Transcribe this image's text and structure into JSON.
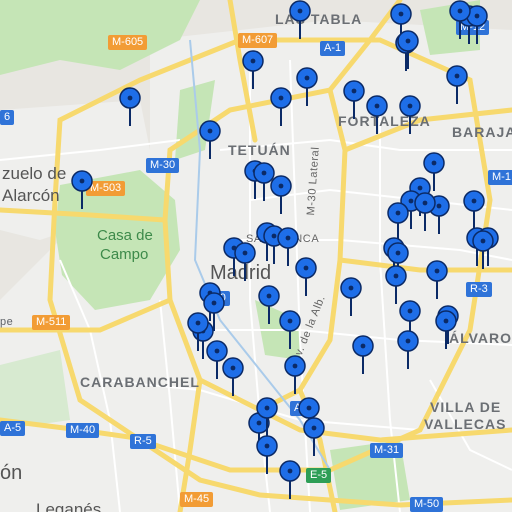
{
  "colors": {
    "background": "#e8e6e1",
    "park": "#c5e5b6",
    "urban": "#efefed",
    "road_major": "#f7d96e",
    "road_minor": "#ffffff",
    "pin_fill": "#1e6ee8",
    "pin_stroke": "#0b2a66",
    "shield_blue": "#2f73d8",
    "shield_orange": "#f29c35",
    "shield_green": "#2e9e56"
  },
  "labels": {
    "madrid": "Madrid",
    "tetuan": "TETUÁN",
    "salamanca": "SALAMANCA",
    "fortaleza": "FORTALEZA",
    "barajas": "BARAJA",
    "las_tablas": "LAS TABLA",
    "pozuelo": "zuelo de",
    "alarcon": "Alarcón",
    "casa": "Casa de",
    "campo": "Campo",
    "carabanchel": "CARABANCHEL",
    "villa": "VILLA DE",
    "vallecas": "VALLECAS",
    "alvaro": "ÁLVARO",
    "m30_lateral": "M-30 Lateral",
    "av_alb": "Av. de la Alb.",
    "left_pe": "pe",
    "left_on": "ón",
    "leganes": "Leganés"
  },
  "shields": {
    "m605": "M-605",
    "m607": "M-607",
    "a1": "A-1",
    "m12": "M-12",
    "m6": "6",
    "m30a": "M-30",
    "m503": "M-503",
    "m30b": "-30",
    "m511": "M-511",
    "m11": "M-1",
    "r3": "R-3",
    "a4": "A-4",
    "a5": "A-5",
    "m40": "M-40",
    "r5": "R-5",
    "m31": "M-31",
    "e5": "E-5",
    "m45": "M-45",
    "m50": "M-50"
  },
  "markers": {
    "count": 61,
    "icon": "map-pin-icon",
    "points": [
      {
        "lat": 40.508,
        "lng": -3.682
      },
      {
        "lat": 40.503,
        "lng": -3.624
      },
      {
        "lat": 40.491,
        "lng": -3.621
      },
      {
        "lat": 40.502,
        "lng": -3.585
      },
      {
        "lat": 40.484,
        "lng": -3.709
      },
      {
        "lat": 40.477,
        "lng": -3.678
      },
      {
        "lat": 40.472,
        "lng": -3.651
      },
      {
        "lat": 40.469,
        "lng": -3.693
      },
      {
        "lat": 40.469,
        "lng": -3.78
      },
      {
        "lat": 40.466,
        "lng": -3.619
      },
      {
        "lat": 40.466,
        "lng": -3.638
      },
      {
        "lat": 40.478,
        "lng": -3.592
      },
      {
        "lat": 40.456,
        "lng": -3.734
      },
      {
        "lat": 40.44,
        "lng": -3.708
      },
      {
        "lat": 40.439,
        "lng": -3.703
      },
      {
        "lat": 40.434,
        "lng": -3.693
      },
      {
        "lat": 40.443,
        "lng": -3.605
      },
      {
        "lat": 40.433,
        "lng": -3.613
      },
      {
        "lat": 40.428,
        "lng": -3.618
      },
      {
        "lat": 40.426,
        "lng": -3.602
      },
      {
        "lat": 40.423,
        "lng": -3.626
      },
      {
        "lat": 40.415,
        "lng": -3.701
      },
      {
        "lat": 40.414,
        "lng": -3.697
      },
      {
        "lat": 40.413,
        "lng": -3.689
      },
      {
        "lat": 40.409,
        "lng": -3.72
      },
      {
        "lat": 40.407,
        "lng": -3.714
      },
      {
        "lat": 40.409,
        "lng": -3.628
      },
      {
        "lat": 40.407,
        "lng": -3.626
      },
      {
        "lat": 40.413,
        "lng": -3.58
      },
      {
        "lat": 40.413,
        "lng": -3.574
      },
      {
        "lat": 40.401,
        "lng": -3.679
      },
      {
        "lat": 40.398,
        "lng": -3.627
      },
      {
        "lat": 40.393,
        "lng": -3.653
      },
      {
        "lat": 40.391,
        "lng": -3.734
      },
      {
        "lat": 40.39,
        "lng": -3.7
      },
      {
        "lat": 40.387,
        "lng": -3.732
      },
      {
        "lat": 40.384,
        "lng": -3.619
      },
      {
        "lat": 40.382,
        "lng": -3.597
      },
      {
        "lat": 40.38,
        "lng": -3.598
      },
      {
        "lat": 40.38,
        "lng": -3.688
      },
      {
        "lat": 40.376,
        "lng": -3.738
      },
      {
        "lat": 40.372,
        "lng": -3.62
      },
      {
        "lat": 40.37,
        "lng": -3.646
      },
      {
        "lat": 40.368,
        "lng": -3.73
      },
      {
        "lat": 40.362,
        "lng": -3.685
      },
      {
        "lat": 40.345,
        "lng": -3.677
      },
      {
        "lat": 40.339,
        "lng": -3.706
      },
      {
        "lat": 40.337,
        "lng": -3.674
      },
      {
        "lat": 40.33,
        "lng": -3.701
      },
      {
        "lat": 40.32,
        "lng": -3.688
      },
      {
        "lat": 40.502,
        "lng": -3.58
      },
      {
        "lat": 40.492,
        "lng": -3.62
      },
      {
        "lat": 40.427,
        "lng": -3.61
      },
      {
        "lat": 40.428,
        "lng": -3.582
      },
      {
        "lat": 40.412,
        "lng": -3.577
      },
      {
        "lat": 40.4,
        "lng": -3.603
      },
      {
        "lat": 40.436,
        "lng": -3.808
      },
      {
        "lat": 40.512,
        "lng": -3.59
      },
      {
        "lat": 40.345,
        "lng": -3.701
      },
      {
        "lat": 40.379,
        "lng": -3.741
      },
      {
        "lat": 40.361,
        "lng": -3.721
      }
    ]
  }
}
